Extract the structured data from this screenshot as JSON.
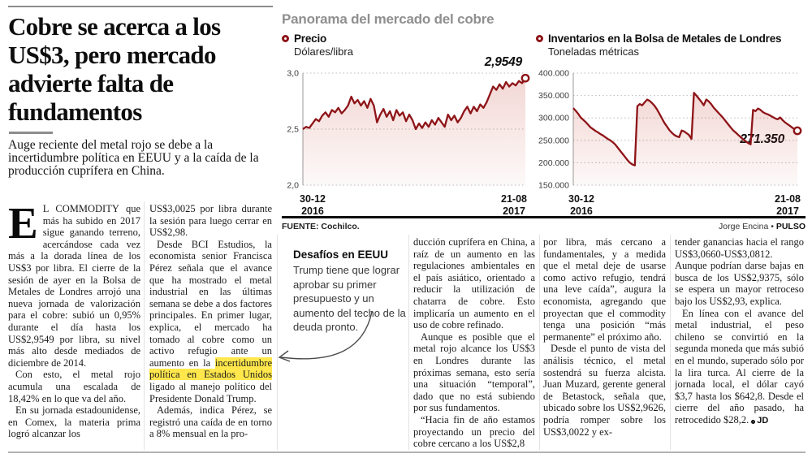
{
  "article": {
    "headline": "Cobre se acerca a los US$3, pero mercado advierte falta de fundamentos",
    "subhead": "Auge reciente del metal rojo se debe a la incertidumbre política en EEUU y a la caída de la producción cuprífera en China.",
    "columns": {
      "col1": {
        "dropcap": "E",
        "p1": "L COMMODITY que más ha subido en 2017 sigue ganando terreno, acercándose cada vez más a la dorada línea de los US$3 por libra. El cierre de la sesión de ayer en la Bolsa de Metales de Londres arrojó una nueva jornada de valorización para el cobre: subió un 0,95% durante el día hasta los US$2,9549 por libra, su nivel más alto desde mediados de diciembre de 2014.",
        "p2": "Con esto, el metal rojo acumula una escalada de 18,42% en lo que va del año.",
        "p3": "En su jornada estadounidense, en Comex, la materia prima logró alcanzar los"
      },
      "col2": {
        "p1": "US$3,0025 por libra durante la sesión para luego cerrar en US$2,98.",
        "p2_before": "Desde BCI Estudios, la economista senior Francisca Pérez señala que el avance que ha mostrado el metal industrial en las últimas semana se debe a dos factores principales. En primer lugar, explica, el mercado ha tomado al cobre como un activo refugio ante un aumento en la ",
        "p2_highlight": "incertidumbre política en Estados Unidos",
        "p2_after": " ligado al manejo político del Presidente Donald Trump.",
        "p3": "Además, indica Pérez, se registró una caída de en torno a 8% mensual en la pro-"
      },
      "col4": {
        "p1": "ducción cuprífera en China, a raíz de un aumento en las regulaciones ambientales en el país asiático, orientado a reducir la utilización de chatarra de cobre. Esto implicaría un aumento en el uso de cobre refinado.",
        "p2": "Aunque es posible que el metal rojo alcance los US$3 en Londres durante las próximas semana, esto sería una situación “temporal”, dado que no está subiendo por sus fundamentos.",
        "p3": "“Hacia fin de año estamos proyectando un precio del cobre cercano a los US$2,8"
      },
      "col5": {
        "p1": "por libra, más cercano a fundamentales, y a medida que el metal deje de usarse como activo refugio, tendrá una leve caída”, augura la economista, agregando que proyectan que el commodity tenga una posición “más permanente” el próximo año.",
        "p2": "Desde el punto de vista del análisis técnico, el metal sostendrá su fuerza alcista. Juan Muzard, gerente general de Betastock, señala que, ubicado sobre los US$2,9626, podría romper sobre los US$3,0022 y ex-"
      },
      "col6": {
        "p1": "tender ganancias hacia el rango US$3,0660-US$3,0812. Aunque podrían darse bajas en busca de los US$2,9375, sólo se espera un mayor retroceso bajo los US$2,93, explica.",
        "p2": "En línea con el avance del metal industrial, el peso chileno se convirtió en la segunda moneda que más subió en el mundo, superado sólo por la lira turca. Al cierre de la jornada local, el dólar cayó $3,7 hasta los $642,8. Desde el cierre del año pasado, ha retrocedido $28,2.",
        "end_mark": "JD"
      }
    },
    "callout": {
      "title": "Desafíos en EEUU",
      "body": "Trump tiene que lograr aprobar su primer presupuesto y un aumento del techo de la deuda pronto."
    }
  },
  "infographic": {
    "title": "Panorama del mercado del cobre",
    "source": "FUENTE: Cochilco.",
    "credit_author": "Jorge Encina",
    "credit_sep": " • ",
    "credit_brand": "PULSO",
    "accent_color": "#8e1418"
  },
  "chart_data": [
    {
      "type": "line",
      "title": "Precio",
      "unit_label": "Dólares/libra",
      "end_label": "2,9549",
      "end_value": 2.9549,
      "ylim": [
        2.0,
        3.0
      ],
      "y_ticks": [
        {
          "label": "3,0",
          "value": 3.0
        },
        {
          "label": "2,5",
          "value": 2.5
        },
        {
          "label": "2,0",
          "value": 2.0
        }
      ],
      "x_ticks": [
        {
          "day": "30-12",
          "year": "2016"
        },
        {
          "day": "21-08",
          "year": "2017"
        }
      ],
      "grid": true,
      "legend_position": "top-left",
      "values": [
        2.5,
        2.52,
        2.51,
        2.55,
        2.59,
        2.57,
        2.62,
        2.65,
        2.61,
        2.67,
        2.65,
        2.69,
        2.64,
        2.67,
        2.71,
        2.79,
        2.73,
        2.76,
        2.71,
        2.75,
        2.69,
        2.77,
        2.71,
        2.56,
        2.63,
        2.68,
        2.61,
        2.66,
        2.58,
        2.67,
        2.62,
        2.65,
        2.57,
        2.63,
        2.58,
        2.5,
        2.55,
        2.51,
        2.56,
        2.52,
        2.58,
        2.54,
        2.6,
        2.56,
        2.52,
        2.63,
        2.58,
        2.62,
        2.56,
        2.6,
        2.66,
        2.7,
        2.64,
        2.7,
        2.66,
        2.72,
        2.69,
        2.74,
        2.81,
        2.88,
        2.85,
        2.9,
        2.86,
        2.92,
        2.88,
        2.91,
        2.89,
        2.93,
        2.91,
        2.9549
      ]
    },
    {
      "type": "line",
      "title": "Inventarios en la Bolsa de Metales de Londres",
      "unit_label": "Toneladas métricas",
      "end_label": "271.350",
      "end_value": 271350,
      "ylim": [
        150000,
        400000
      ],
      "y_ticks": [
        {
          "label": "400.000",
          "value": 400000
        },
        {
          "label": "350.000",
          "value": 350000
        },
        {
          "label": "300.000",
          "value": 300000
        },
        {
          "label": "250.000",
          "value": 250000
        },
        {
          "label": "200.000",
          "value": 200000
        },
        {
          "label": "150.000",
          "value": 150000
        }
      ],
      "x_ticks": [
        {
          "day": "30-12",
          "year": "2016"
        },
        {
          "day": "21-08",
          "year": "2017"
        }
      ],
      "grid": true,
      "legend_position": "top-left",
      "values": [
        322000,
        316000,
        309000,
        301000,
        296000,
        291000,
        285000,
        279000,
        275000,
        271000,
        268000,
        264000,
        261000,
        257000,
        253000,
        250000,
        246000,
        241000,
        234000,
        227000,
        220000,
        213000,
        206000,
        200000,
        196000,
        194000,
        326000,
        331000,
        328000,
        335000,
        341000,
        338000,
        333000,
        327000,
        319000,
        309000,
        299000,
        289000,
        281000,
        273000,
        267000,
        262000,
        259000,
        257000,
        272000,
        270000,
        266000,
        262000,
        253000,
        356000,
        350000,
        343000,
        336000,
        328000,
        341000,
        337000,
        331000,
        323000,
        317000,
        311000,
        305000,
        299000,
        292000,
        285000,
        278000,
        272000,
        267000,
        262000,
        257000,
        252000,
        248000,
        244000,
        241000,
        318000,
        315000,
        321000,
        318000,
        313000,
        310000,
        308000,
        305000,
        302000,
        299000,
        297000,
        301000,
        295000,
        290000,
        286000,
        282000,
        278000,
        274000,
        271350
      ]
    }
  ]
}
